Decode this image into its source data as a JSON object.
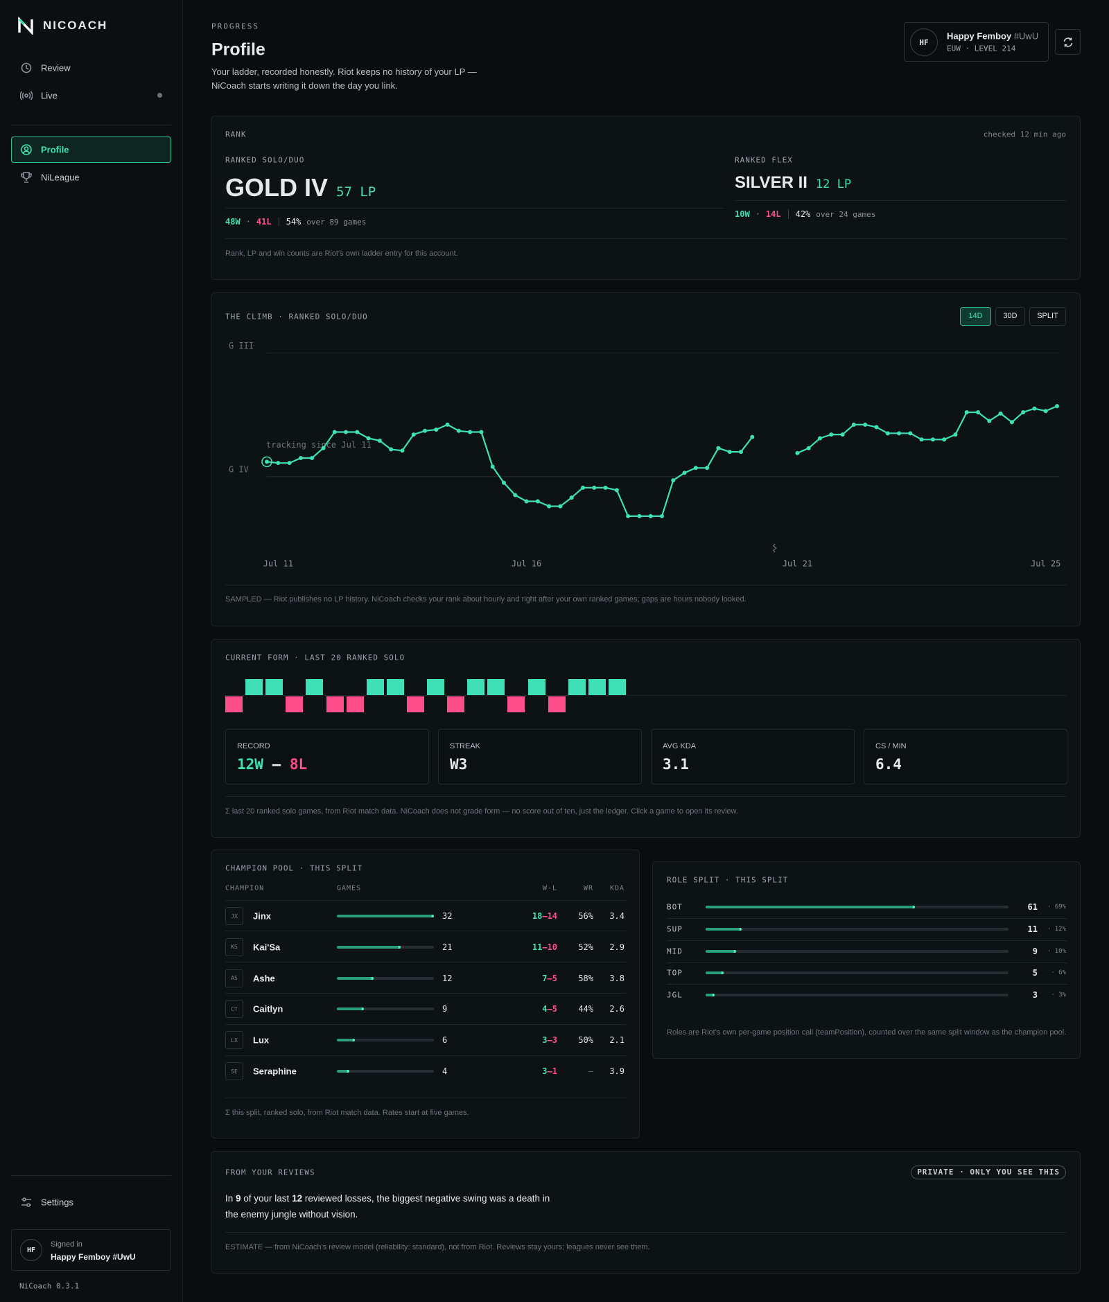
{
  "sidebar": {
    "brand": "NICOACH",
    "nav": [
      {
        "label": "Review"
      },
      {
        "label": "Live"
      },
      {
        "label": "Profile"
      },
      {
        "label": "NiLeague"
      }
    ],
    "settings": "Settings",
    "signed_in": {
      "initials": "HF",
      "caption": "Signed in",
      "name": "Happy Femboy #UwU"
    },
    "version": "NiCoach 0.3.1"
  },
  "header": {
    "eyebrow": "PROGRESS",
    "title": "Profile",
    "subtitle": "Your ladder, recorded honestly. Riot keeps no history of your LP — NiCoach starts writing it down the day you link."
  },
  "user": {
    "initials": "HF",
    "name": "Happy Femboy",
    "tag": "#UwU",
    "meta": "EUW · LEVEL 214"
  },
  "rank": {
    "title": "RANK",
    "checked": "checked 12 min ago",
    "separator": "·",
    "queues": [
      {
        "label": "RANKED SOLO/DUO",
        "tier": "GOLD IV",
        "lp": "57 LP",
        "wins": "48W",
        "losses": "41L",
        "winrate": "54%",
        "games": "over 89 games"
      },
      {
        "label": "RANKED FLEX",
        "tier": "SILVER II",
        "lp": "12 LP",
        "wins": "10W",
        "losses": "14L",
        "winrate": "42%",
        "games": "over 24 games"
      }
    ],
    "note": "Rank, LP and win counts are Riot's own ladder entry for this account."
  },
  "chart_data": {
    "type": "line",
    "title": "THE CLIMB · RANKED SOLO/DUO",
    "range_buttons": [
      "14D",
      "30D",
      "SPLIT"
    ],
    "annotation": "tracking since Jul 11",
    "note": "SAMPLED — Riot publishes no LP history. NiCoach checks your rank about hourly and right after your own ranked games; gaps are hours nobody looked.",
    "color": "#3fe0b5",
    "grid": true,
    "categories": [
      null,
      "Jul 11",
      null,
      null,
      null,
      null,
      null,
      null,
      null,
      null,
      null,
      null,
      null,
      null,
      null,
      null,
      null,
      null,
      null,
      null,
      null,
      null,
      null,
      "Jul 16",
      null,
      null,
      null,
      null,
      null,
      null,
      null,
      null,
      null,
      null,
      null,
      null,
      null,
      null,
      null,
      null,
      null,
      null,
      null,
      null,
      null,
      null,
      null,
      "Jul 21",
      null,
      null,
      null,
      null,
      null,
      null,
      null,
      null,
      null,
      null,
      null,
      null,
      null,
      null,
      null,
      null,
      null,
      null,
      null,
      null,
      null,
      "Jul 25",
      null
    ],
    "values": [
      12,
      11,
      11,
      15,
      15,
      23,
      36,
      36,
      36,
      31,
      29,
      22,
      21,
      34,
      37,
      38,
      42,
      37,
      36,
      36,
      8,
      -5,
      -15,
      -20,
      -20,
      -24,
      -24,
      -17,
      -9,
      -9,
      -9,
      -11,
      -32,
      -32,
      -32,
      -32,
      -3,
      3,
      7,
      7,
      23,
      20,
      20,
      32,
      null,
      null,
      null,
      19,
      23,
      31,
      34,
      34,
      42,
      42,
      40,
      35,
      35,
      35,
      30,
      30,
      30,
      34,
      52,
      52,
      45,
      51,
      44,
      52,
      55,
      53,
      57
    ],
    "ylim": [
      -50,
      110
    ],
    "yticks": [
      {
        "value": 0,
        "label": "G IV"
      },
      {
        "value": 100,
        "label": "G III"
      }
    ]
  },
  "form": {
    "title": "CURRENT FORM · LAST 20 RANKED SOLO",
    "results": [
      "L",
      "W",
      "W",
      "L",
      "W",
      "L",
      "L",
      "W",
      "W",
      "L",
      "W",
      "L",
      "W",
      "W",
      "L",
      "W",
      "L",
      "W",
      "W",
      "W"
    ],
    "win_color": "#3fe0b5",
    "loss_color": "#ff4f8b",
    "record": {
      "label": "RECORD",
      "wins": "12W",
      "separator": "–",
      "losses": "8L"
    },
    "stats": [
      {
        "label": "STREAK",
        "value": "W3"
      },
      {
        "label": "AVG KDA",
        "value": 3.1
      },
      {
        "label": "CS / MIN",
        "value": 6.4
      }
    ],
    "note": "Σ last 20 ranked solo games, from Riot match data. NiCoach does not grade form — no score out of ten, just the ledger. Click a game to open its review."
  },
  "champion_pool": {
    "title": "CHAMPION POOL · THIS SPLIT",
    "columns": [
      "CHAMPION",
      "GAMES",
      "W-L",
      "WR",
      "KDA"
    ],
    "separator": "–",
    "rows": [
      {
        "abbr": "JX",
        "name": "Jinx",
        "games": 32,
        "wins": 18,
        "losses": 14,
        "wr": "56%",
        "kda": 3.4
      },
      {
        "abbr": "KS",
        "name": "Kai'Sa",
        "games": 21,
        "wins": 11,
        "losses": 10,
        "wr": "52%",
        "kda": 2.9
      },
      {
        "abbr": "AS",
        "name": "Ashe",
        "games": 12,
        "wins": 7,
        "losses": 5,
        "wr": "58%",
        "kda": 3.8
      },
      {
        "abbr": "CT",
        "name": "Caitlyn",
        "games": 9,
        "wins": 4,
        "losses": 5,
        "wr": "44%",
        "kda": 2.6
      },
      {
        "abbr": "LX",
        "name": "Lux",
        "games": 6,
        "wins": 3,
        "losses": 3,
        "wr": "50%",
        "kda": 2.1
      },
      {
        "abbr": "SE",
        "name": "Seraphine",
        "games": 4,
        "wins": 3,
        "losses": 1,
        "wr": "—",
        "kda": 3.9
      }
    ],
    "note": "Σ this split, ranked solo, from Riot match data. Rates start at five games."
  },
  "role_split": {
    "title": "ROLE SPLIT · THIS SPLIT",
    "separator": "·",
    "rows": [
      {
        "role": "BOT",
        "games": 61,
        "share": 69,
        "share_label": "69%"
      },
      {
        "role": "SUP",
        "games": 11,
        "share": 12,
        "share_label": "12%"
      },
      {
        "role": "MID",
        "games": 9,
        "share": 10,
        "share_label": "10%"
      },
      {
        "role": "TOP",
        "games": 5,
        "share": 6,
        "share_label": "6%"
      },
      {
        "role": "JGL",
        "games": 3,
        "share": 3,
        "share_label": "3%"
      }
    ],
    "note": "Roles are Riot's own per-game position call (teamPosition), counted over the same split window as the champion pool."
  },
  "reviews": {
    "title": "FROM YOUR REVIEWS",
    "badge": "PRIVATE · ONLY YOU SEE THIS",
    "text": [
      "In ",
      "9",
      " of your last ",
      "12",
      " reviewed losses, the biggest negative swing was a death in the enemy jungle without vision."
    ],
    "note": "ESTIMATE — from NiCoach's review model (reliability: standard), not from Riot. Reviews stay yours; leagues never see them."
  }
}
